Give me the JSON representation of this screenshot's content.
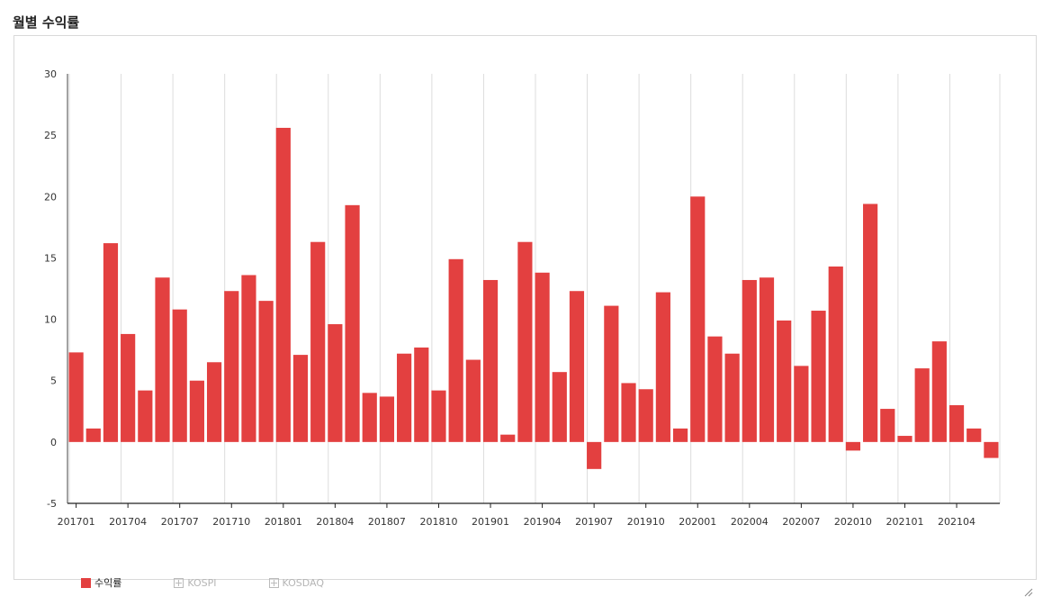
{
  "header": {
    "title": "월별 수익률"
  },
  "legend": {
    "items": [
      {
        "label": "수익률",
        "active": true,
        "color": "#e34040"
      },
      {
        "label": "KOSPI",
        "active": false,
        "color": "#bbbbbb"
      },
      {
        "label": "KOSDAQ",
        "active": false,
        "color": "#bbbbbb"
      }
    ]
  },
  "chart_data": {
    "type": "bar",
    "ylim": [
      -5,
      30
    ],
    "yticks": [
      -5,
      0,
      5,
      10,
      15,
      20,
      25,
      30
    ],
    "grid": "vertical",
    "legend_position": "bottom-left",
    "color": "#e34040",
    "categories": [
      "201701",
      "201702",
      "201703",
      "201704",
      "201705",
      "201706",
      "201707",
      "201708",
      "201709",
      "201710",
      "201711",
      "201712",
      "201801",
      "201802",
      "201803",
      "201804",
      "201805",
      "201806",
      "201807",
      "201808",
      "201809",
      "201810",
      "201811",
      "201812",
      "201901",
      "201902",
      "201903",
      "201904",
      "201905",
      "201906",
      "201907",
      "201908",
      "201909",
      "201910",
      "201911",
      "201912",
      "202001",
      "202002",
      "202003",
      "202004",
      "202005",
      "202006",
      "202007",
      "202008",
      "202009",
      "202010",
      "202011",
      "202012",
      "202101",
      "202102",
      "202103",
      "202104",
      "202105",
      "202106"
    ],
    "xtick_labels": [
      "201701",
      "201704",
      "201707",
      "201710",
      "201801",
      "201804",
      "201807",
      "201810",
      "201901",
      "201904",
      "201907",
      "201910",
      "202001",
      "202004",
      "202007",
      "202010",
      "202101",
      "202104"
    ],
    "series": [
      {
        "name": "수익률",
        "values": [
          7.3,
          1.1,
          16.2,
          8.8,
          4.2,
          13.4,
          10.8,
          5.0,
          6.5,
          12.3,
          13.6,
          11.5,
          25.6,
          7.1,
          16.3,
          9.6,
          19.3,
          4.0,
          3.7,
          7.2,
          7.7,
          4.2,
          14.9,
          6.7,
          13.2,
          0.6,
          16.3,
          13.8,
          5.7,
          12.3,
          -2.2,
          11.1,
          4.8,
          4.3,
          12.2,
          1.1,
          20.0,
          8.6,
          7.2,
          13.2,
          13.4,
          9.9,
          6.2,
          10.7,
          14.3,
          -0.7,
          19.4,
          2.7,
          0.5,
          6.0,
          8.2,
          3.0,
          1.1,
          -1.3
        ]
      }
    ]
  }
}
